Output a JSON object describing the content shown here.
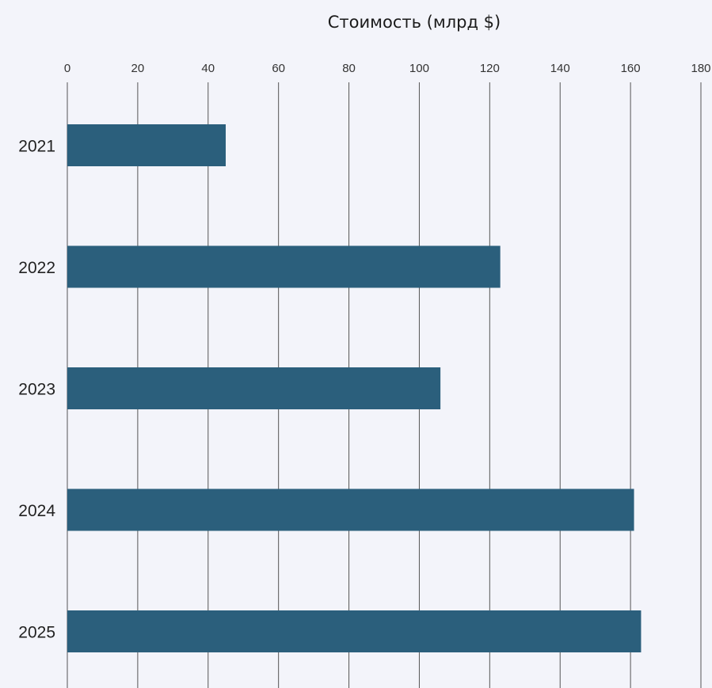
{
  "chart_data": {
    "type": "bar",
    "orientation": "horizontal",
    "title": "",
    "xlabel": "Стоимость (млрд $)",
    "xlabel_position": "top",
    "ylabel": "",
    "categories": [
      "2021",
      "2022",
      "2023",
      "2024",
      "2025"
    ],
    "values": [
      45,
      123,
      106,
      161,
      163
    ],
    "xlim": [
      0,
      180
    ],
    "x_ticks": [
      0,
      20,
      40,
      60,
      80,
      100,
      120,
      140,
      160,
      180
    ],
    "grid": "vertical",
    "legend": "none",
    "colors": {
      "bar": "#2b5f7c",
      "grid": "#555555",
      "background": "#f3f4fa"
    }
  }
}
